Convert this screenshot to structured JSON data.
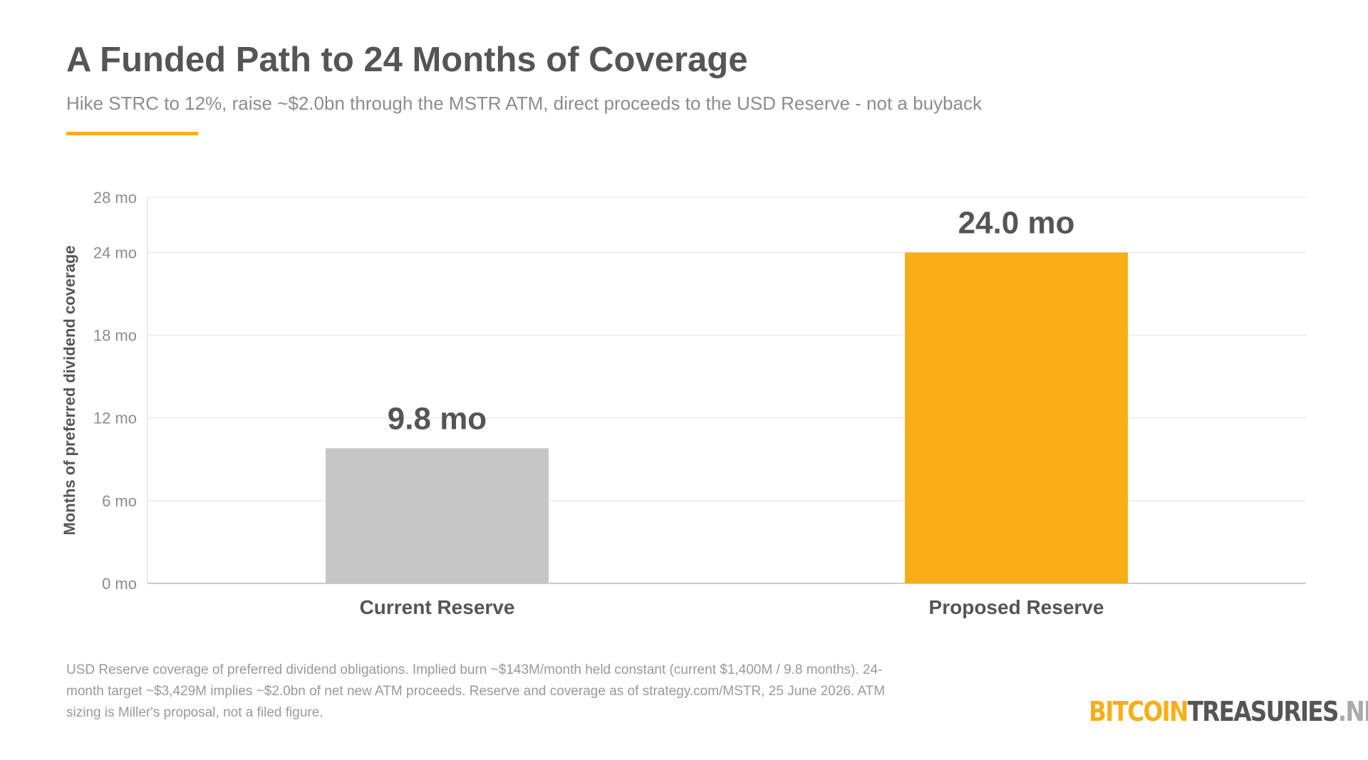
{
  "header": {
    "title": "A Funded Path to 24 Months of Coverage",
    "subtitle": "Hike STRC to 12%, raise ~$2.0bn through the MSTR ATM, direct proceeds to the USD Reserve - not a buyback"
  },
  "colors": {
    "accent": "#F9AE17",
    "current_bar": "#C6C6C6",
    "proposed_bar": "#F9AE17",
    "title_text": "#555555",
    "grid": "#E6E6E6",
    "logo_gray": "#555555",
    "logo_light": "#AAAAAA"
  },
  "chart_data": {
    "type": "bar",
    "categories": [
      "Current Reserve",
      "Proposed Reserve"
    ],
    "values": [
      9.8,
      24.0
    ],
    "data_labels": [
      "9.8 mo",
      "24.0 mo"
    ],
    "ylabel": "Months of preferred dividend coverage",
    "ylim": [
      0,
      28
    ],
    "yticks": [
      0,
      6,
      12,
      18,
      24,
      28
    ],
    "ytick_labels": [
      "0 mo",
      "6 mo",
      "12 mo",
      "18 mo",
      "24 mo",
      "28 mo"
    ],
    "grid": true
  },
  "footnote": "USD Reserve coverage of preferred dividend obligations. Implied burn ~$143M/month held constant (current $1,400M / 9.8 months). 24-month target ~$3,429M implies ~$2.0bn of net new ATM proceeds. Reserve and coverage as of strategy.com/MSTR, 25 June 2026. ATM sizing is Miller's proposal, not a filed figure.",
  "logo": {
    "part1": "BITCOIN",
    "part2": "TREASURIES",
    "part3": ".NET",
    "icon": "bitcointreasuries-logo"
  }
}
